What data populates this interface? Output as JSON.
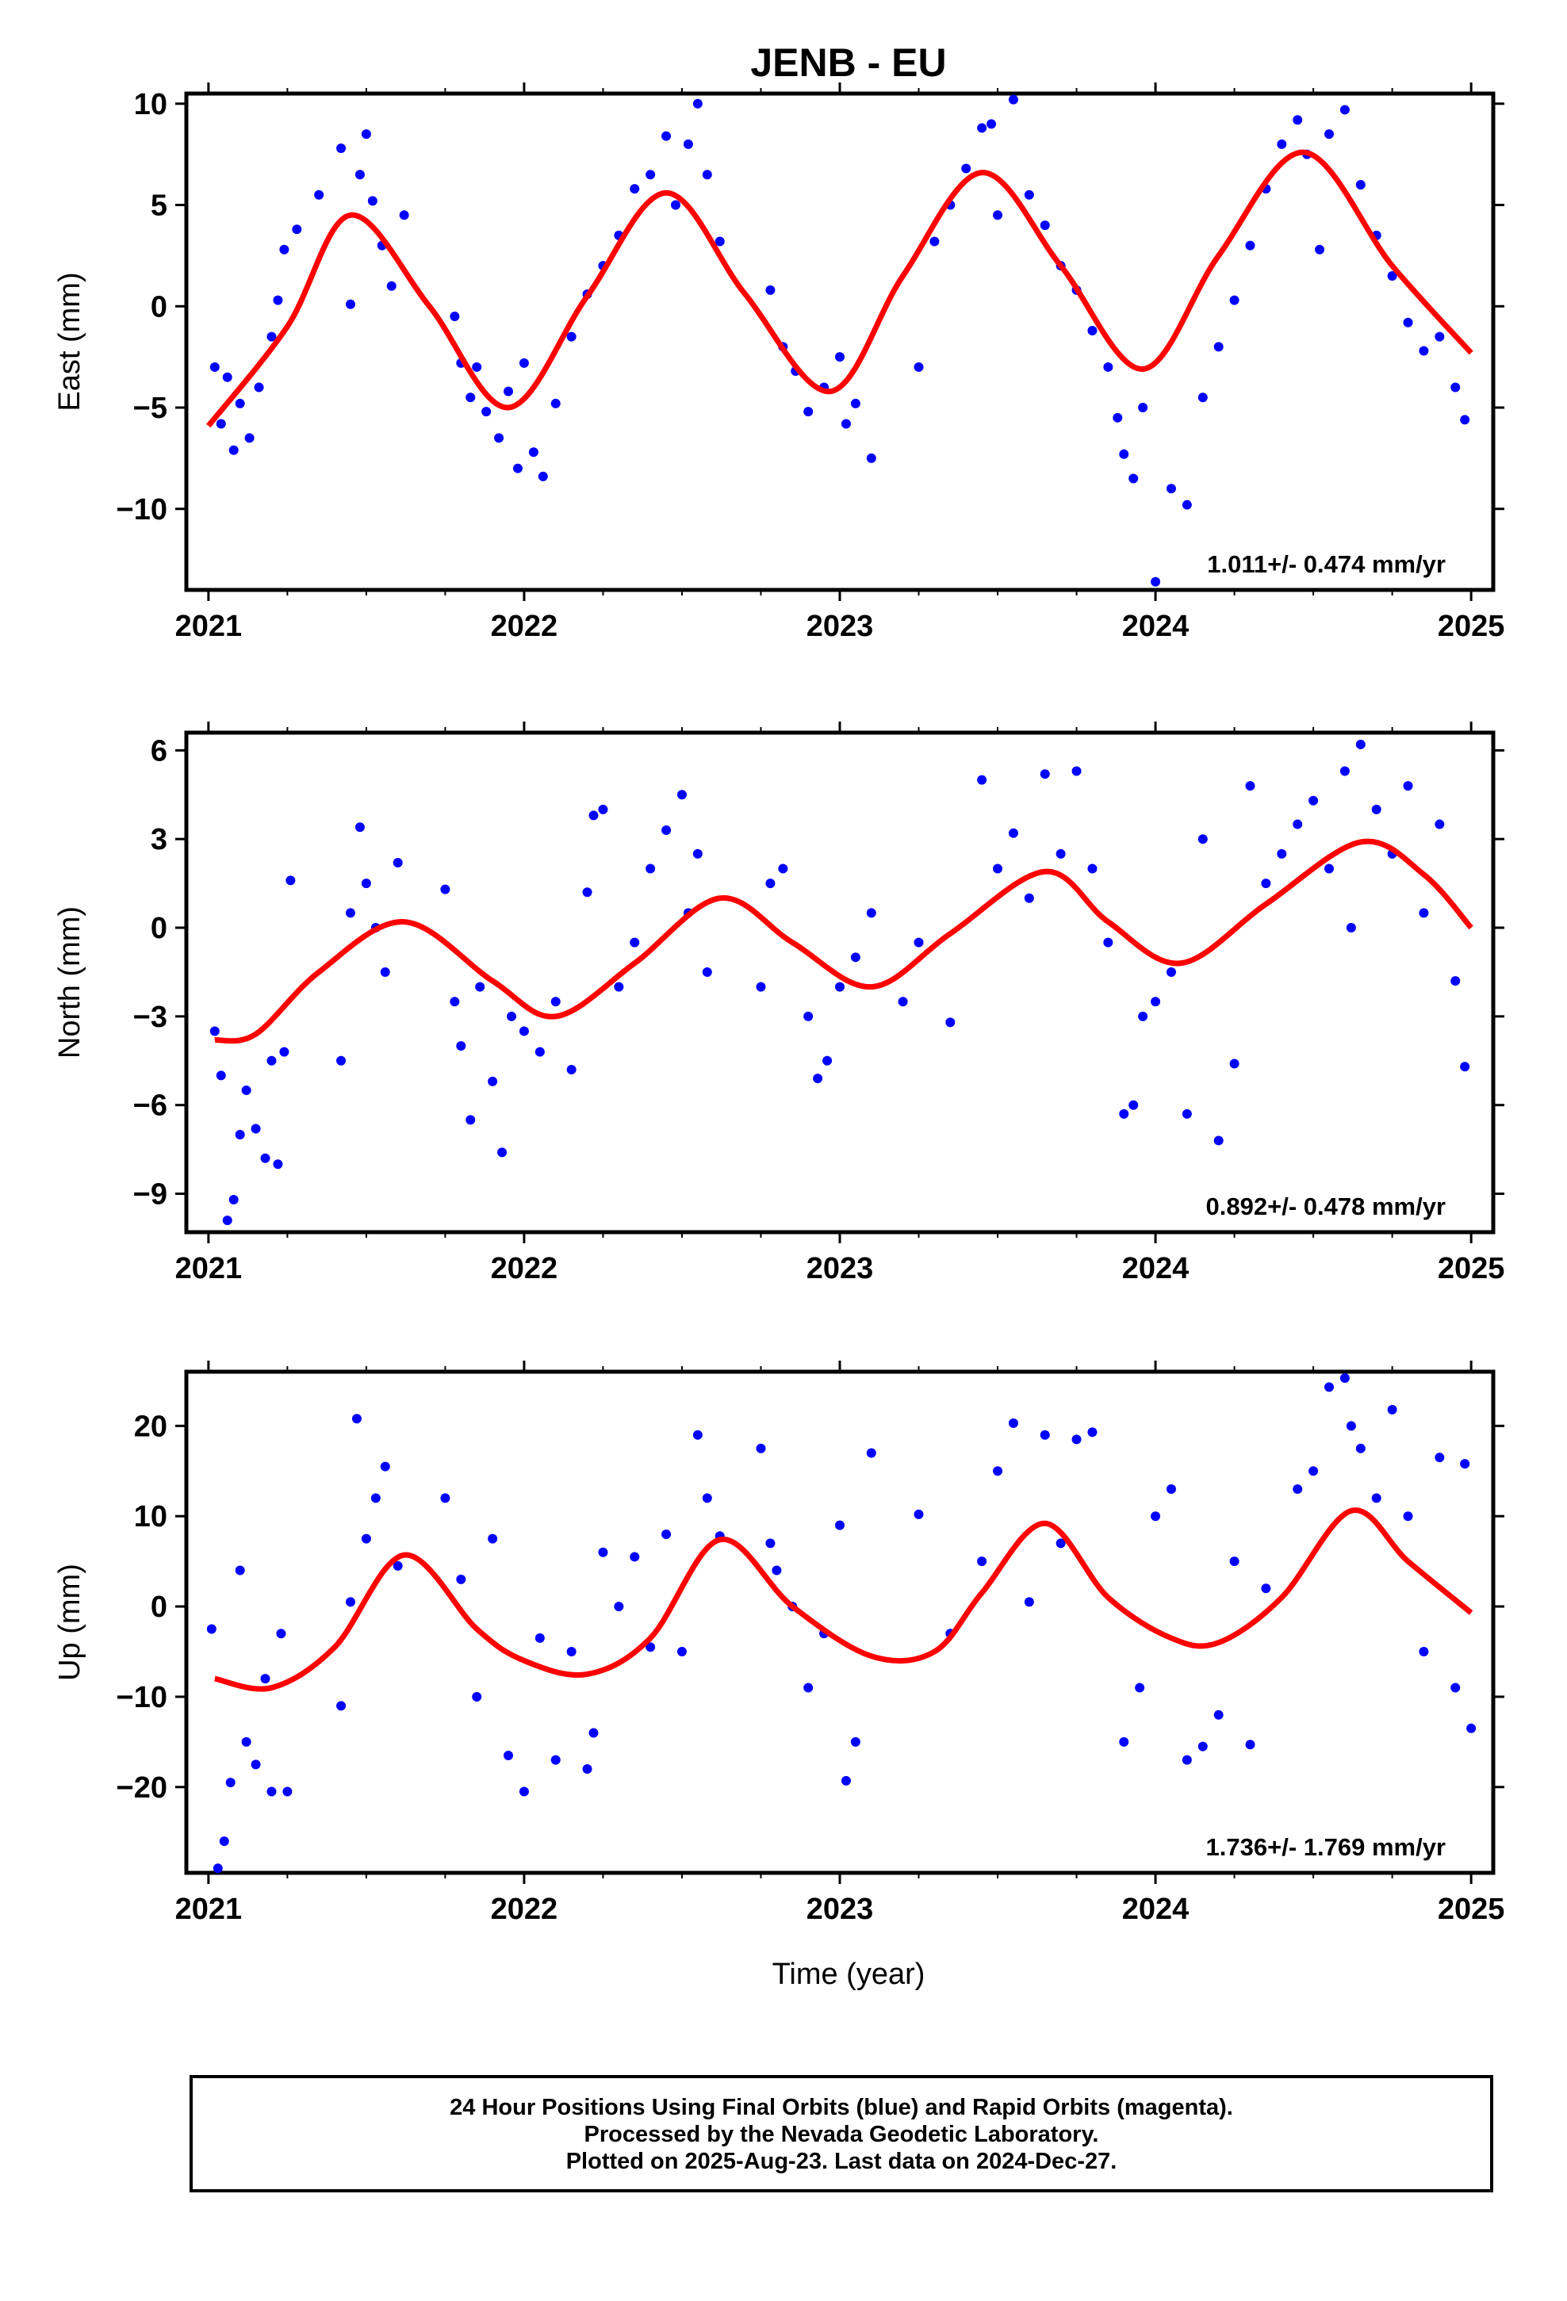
{
  "title": "JENB - EU",
  "xlabel": "Time (year)",
  "caption": [
    "24 Hour Positions Using Final Orbits (blue) and Rapid Orbits (magenta).",
    "Processed by the Nevada Geodetic Laboratory.",
    "Plotted on 2025-Aug-23. Last data on 2024-Dec-27."
  ],
  "colors": {
    "points": "#0000ff",
    "fit": "#ff0000",
    "frame": "#000000"
  },
  "chart_data": [
    {
      "type": "scatter",
      "ylabel": "East (mm)",
      "xlim": [
        2020.93,
        2025.07
      ],
      "ylim": [
        -14.0,
        10.5
      ],
      "xticks": [
        2021,
        2022,
        2023,
        2024,
        2025
      ],
      "yticks": [
        10,
        5,
        0,
        -5,
        -10
      ],
      "ytick_labels": [
        "10",
        "5",
        "0",
        "−5",
        "−10"
      ],
      "rate_label": "1.011+/- 0.474 mm/yr",
      "fit": {
        "name": "",
        "x": [
          2021.0,
          2021.25,
          2021.45,
          2021.7,
          2021.95,
          2022.2,
          2022.45,
          2022.7,
          2022.97,
          2023.2,
          2023.45,
          2023.7,
          2023.96,
          2024.2,
          2024.47,
          2024.75,
          2025.0
        ],
        "y": [
          -5.9,
          -1.0,
          4.5,
          0.0,
          -5.0,
          0.5,
          5.6,
          0.6,
          -4.2,
          1.5,
          6.6,
          2.0,
          -3.1,
          2.5,
          7.6,
          2.0,
          -2.3
        ]
      },
      "series": [
        {
          "name": "",
          "x": [
            2021.02,
            2021.04,
            2021.06,
            2021.08,
            2021.1,
            2021.13,
            2021.16,
            2021.2,
            2021.22,
            2021.24,
            2021.28,
            2021.35,
            2021.42,
            2021.45,
            2021.48,
            2021.5,
            2021.52,
            2021.55,
            2021.58,
            2021.62,
            2021.78,
            2021.8,
            2021.83,
            2021.85,
            2021.88,
            2021.92,
            2021.95,
            2021.98,
            2022.0,
            2022.03,
            2022.06,
            2022.1,
            2022.15,
            2022.2,
            2022.25,
            2022.3,
            2022.35,
            2022.4,
            2022.45,
            2022.48,
            2022.52,
            2022.55,
            2022.58,
            2022.62,
            2022.78,
            2022.82,
            2022.86,
            2022.9,
            2022.95,
            2023.0,
            2023.02,
            2023.05,
            2023.1,
            2023.25,
            2023.3,
            2023.35,
            2023.4,
            2023.45,
            2023.48,
            2023.5,
            2023.55,
            2023.6,
            2023.65,
            2023.7,
            2023.75,
            2023.8,
            2023.85,
            2023.88,
            2023.9,
            2023.93,
            2023.96,
            2024.0,
            2024.05,
            2024.1,
            2024.15,
            2024.2,
            2024.25,
            2024.3,
            2024.35,
            2024.4,
            2024.45,
            2024.48,
            2024.52,
            2024.55,
            2024.6,
            2024.65,
            2024.7,
            2024.75,
            2024.8,
            2024.85,
            2024.9,
            2024.95,
            2024.98
          ],
          "y": [
            -3.0,
            -5.8,
            -3.5,
            -7.1,
            -4.8,
            -6.5,
            -4.0,
            -1.5,
            0.3,
            2.8,
            3.8,
            5.5,
            7.8,
            0.1,
            6.5,
            8.5,
            5.2,
            3.0,
            1.0,
            4.5,
            -0.5,
            -2.8,
            -4.5,
            -3.0,
            -5.2,
            -6.5,
            -4.2,
            -8.0,
            -2.8,
            -7.2,
            -8.4,
            -4.8,
            -1.5,
            0.6,
            2.0,
            3.5,
            5.8,
            6.5,
            8.4,
            5.0,
            8.0,
            10.0,
            6.5,
            3.2,
            0.8,
            -2.0,
            -3.2,
            -5.2,
            -4.0,
            -2.5,
            -5.8,
            -4.8,
            -7.5,
            -3.0,
            3.2,
            5.0,
            6.8,
            8.8,
            9.0,
            4.5,
            10.2,
            5.5,
            4.0,
            2.0,
            0.8,
            -1.2,
            -3.0,
            -5.5,
            -7.3,
            -8.5,
            -5.0,
            -13.6,
            -9.0,
            -9.8,
            -4.5,
            -2.0,
            0.3,
            3.0,
            5.8,
            8.0,
            9.2,
            7.5,
            2.8,
            8.5,
            9.7,
            6.0,
            3.5,
            1.5,
            -0.8,
            -2.2,
            -1.5,
            -4.0,
            -5.6
          ]
        }
      ]
    },
    {
      "type": "scatter",
      "ylabel": "North (mm)",
      "xlim": [
        2020.93,
        2025.07
      ],
      "ylim": [
        -10.3,
        6.6
      ],
      "xticks": [
        2021,
        2022,
        2023,
        2024,
        2025
      ],
      "yticks": [
        6,
        3,
        0,
        -3,
        -6,
        -9
      ],
      "ytick_labels": [
        "6",
        "3",
        "0",
        "−3",
        "−6",
        "−9"
      ],
      "rate_label": "0.892+/- 0.478 mm/yr",
      "fit": {
        "name": "",
        "x": [
          2021.02,
          2021.15,
          2021.35,
          2021.62,
          2021.9,
          2022.1,
          2022.35,
          2022.62,
          2022.85,
          2023.1,
          2023.35,
          2023.65,
          2023.85,
          2024.08,
          2024.35,
          2024.65,
          2024.85,
          2025.0
        ],
        "y": [
          -3.8,
          -3.6,
          -1.5,
          0.2,
          -1.8,
          -3.0,
          -1.2,
          1.0,
          -0.5,
          -2.0,
          -0.2,
          1.9,
          0.2,
          -1.2,
          0.8,
          2.9,
          1.8,
          0.0
        ]
      },
      "series": [
        {
          "name": "",
          "x": [
            2021.02,
            2021.04,
            2021.06,
            2021.08,
            2021.1,
            2021.12,
            2021.15,
            2021.18,
            2021.2,
            2021.22,
            2021.24,
            2021.26,
            2021.42,
            2021.45,
            2021.48,
            2021.5,
            2021.53,
            2021.56,
            2021.6,
            2021.75,
            2021.78,
            2021.8,
            2021.83,
            2021.86,
            2021.9,
            2021.93,
            2021.96,
            2022.0,
            2022.05,
            2022.1,
            2022.15,
            2022.2,
            2022.22,
            2022.25,
            2022.3,
            2022.35,
            2022.4,
            2022.45,
            2022.5,
            2022.52,
            2022.55,
            2022.58,
            2022.75,
            2022.78,
            2022.82,
            2022.9,
            2022.93,
            2022.96,
            2023.0,
            2023.05,
            2023.1,
            2023.2,
            2023.25,
            2023.35,
            2023.45,
            2023.5,
            2023.55,
            2023.6,
            2023.65,
            2023.7,
            2023.75,
            2023.8,
            2023.85,
            2023.9,
            2023.93,
            2023.96,
            2024.0,
            2024.05,
            2024.1,
            2024.15,
            2024.2,
            2024.25,
            2024.3,
            2024.35,
            2024.4,
            2024.45,
            2024.5,
            2024.55,
            2024.6,
            2024.62,
            2024.65,
            2024.7,
            2024.75,
            2024.8,
            2024.85,
            2024.9,
            2024.95,
            2024.98
          ],
          "y": [
            -3.5,
            -5.0,
            -9.9,
            -9.2,
            -7.0,
            -5.5,
            -6.8,
            -7.8,
            -4.5,
            -8.0,
            -4.2,
            1.6,
            -4.5,
            0.5,
            3.4,
            1.5,
            0.0,
            -1.5,
            2.2,
            1.3,
            -2.5,
            -4.0,
            -6.5,
            -2.0,
            -5.2,
            -7.6,
            -3.0,
            -3.5,
            -4.2,
            -2.5,
            -4.8,
            1.2,
            3.8,
            4.0,
            -2.0,
            -0.5,
            2.0,
            3.3,
            4.5,
            0.5,
            2.5,
            -1.5,
            -2.0,
            1.5,
            2.0,
            -3.0,
            -5.1,
            -4.5,
            -2.0,
            -1.0,
            0.5,
            -2.5,
            -0.5,
            -3.2,
            5.0,
            2.0,
            3.2,
            1.0,
            5.2,
            2.5,
            5.3,
            2.0,
            -0.5,
            -6.3,
            -6.0,
            -3.0,
            -2.5,
            -1.5,
            -6.3,
            3.0,
            -7.2,
            -4.6,
            4.8,
            1.5,
            2.5,
            3.5,
            4.3,
            2.0,
            5.3,
            0.0,
            6.2,
            4.0,
            2.5,
            4.8,
            0.5,
            3.5,
            -1.8,
            -4.7
          ]
        }
      ]
    },
    {
      "type": "scatter",
      "ylabel": "Up (mm)",
      "xlim": [
        2020.93,
        2025.07
      ],
      "ylim": [
        -29.5,
        26.0
      ],
      "xticks": [
        2021,
        2022,
        2023,
        2024,
        2025
      ],
      "yticks": [
        20,
        10,
        0,
        -10,
        -20
      ],
      "ytick_labels": [
        "20",
        "10",
        "0",
        "−10",
        "−20"
      ],
      "rate_label": "1.736+/- 1.769 mm/yr",
      "fit": {
        "name": "",
        "x": [
          2021.02,
          2021.2,
          2021.4,
          2021.62,
          2021.85,
          2022.0,
          2022.2,
          2022.4,
          2022.62,
          2022.85,
          2023.1,
          2023.3,
          2023.45,
          2023.65,
          2023.85,
          2024.05,
          2024.2,
          2024.4,
          2024.62,
          2024.8,
          2025.0
        ],
        "y": [
          -8.0,
          -9.0,
          -4.5,
          5.7,
          -2.5,
          -6.0,
          -7.5,
          -3.5,
          7.4,
          0.0,
          -5.5,
          -5.0,
          1.5,
          9.2,
          1.0,
          -3.5,
          -4.0,
          1.0,
          10.6,
          5.0,
          -0.7
        ]
      },
      "series": [
        {
          "name": "",
          "x": [
            2021.01,
            2021.03,
            2021.05,
            2021.07,
            2021.1,
            2021.12,
            2021.15,
            2021.18,
            2021.2,
            2021.23,
            2021.25,
            2021.42,
            2021.45,
            2021.47,
            2021.5,
            2021.53,
            2021.56,
            2021.6,
            2021.75,
            2021.8,
            2021.85,
            2021.9,
            2021.95,
            2022.0,
            2022.05,
            2022.1,
            2022.15,
            2022.2,
            2022.22,
            2022.25,
            2022.3,
            2022.35,
            2022.4,
            2022.45,
            2022.5,
            2022.55,
            2022.58,
            2022.62,
            2022.75,
            2022.78,
            2022.8,
            2022.85,
            2022.9,
            2022.95,
            2023.0,
            2023.02,
            2023.05,
            2023.1,
            2023.25,
            2023.35,
            2023.45,
            2023.5,
            2023.55,
            2023.6,
            2023.65,
            2023.7,
            2023.75,
            2023.8,
            2023.9,
            2023.95,
            2024.0,
            2024.05,
            2024.1,
            2024.15,
            2024.2,
            2024.25,
            2024.3,
            2024.35,
            2024.45,
            2024.5,
            2024.55,
            2024.6,
            2024.62,
            2024.65,
            2024.7,
            2024.75,
            2024.8,
            2024.85,
            2024.9,
            2024.95,
            2024.98,
            2025.0
          ],
          "y": [
            -2.5,
            -29.0,
            -26.0,
            -19.5,
            4.0,
            -15.0,
            -17.5,
            -8.0,
            -20.5,
            -3.0,
            -20.5,
            -11.0,
            0.5,
            20.8,
            7.5,
            12.0,
            15.5,
            4.5,
            12.0,
            3.0,
            -10.0,
            7.5,
            -16.5,
            -20.5,
            -3.5,
            -17.0,
            -5.0,
            -18.0,
            -14.0,
            6.0,
            0.0,
            5.5,
            -4.5,
            8.0,
            -5.0,
            19.0,
            12.0,
            7.8,
            17.5,
            7.0,
            4.0,
            0.0,
            -9.0,
            -3.0,
            9.0,
            -19.3,
            -15.0,
            17.0,
            10.2,
            -3.0,
            5.0,
            15.0,
            20.3,
            0.5,
            19.0,
            7.0,
            18.5,
            19.3,
            -15.0,
            -9.0,
            10.0,
            13.0,
            -17.0,
            -15.5,
            -12.0,
            5.0,
            -15.3,
            2.0,
            13.0,
            15.0,
            24.3,
            25.3,
            20.0,
            17.5,
            12.0,
            21.8,
            10.0,
            -5.0,
            16.5,
            -9.0,
            15.8,
            -13.5
          ]
        }
      ]
    }
  ]
}
